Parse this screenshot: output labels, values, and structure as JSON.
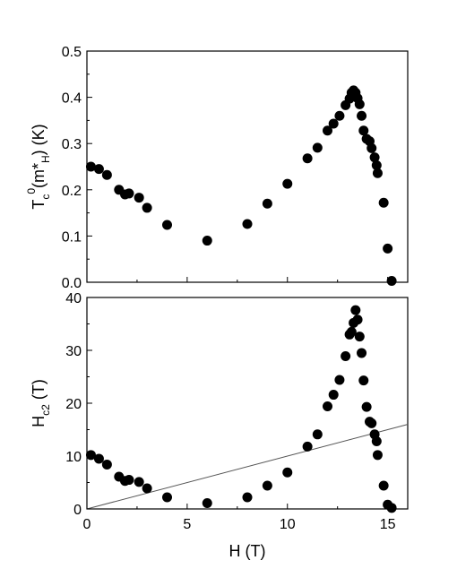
{
  "chart_data": [
    {
      "id": "top",
      "type": "scatter",
      "ylabel": {
        "main": "T",
        "sub": "c",
        "sup": "0",
        "rest": "(m*",
        "sub2": "H",
        "tail": ") (K)"
      },
      "xlim": [
        0,
        16
      ],
      "ylim": [
        0,
        0.5
      ],
      "xticks": [
        "0",
        "5",
        "10",
        "15"
      ],
      "yticks": [
        "0.0",
        "0.1",
        "0.2",
        "0.3",
        "0.4",
        "0.5"
      ],
      "series": [
        {
          "marker": "filled-circle",
          "color": "#000000",
          "x": [
            0.2,
            0.6,
            1.0,
            1.6,
            1.9,
            2.1,
            2.6,
            3.0,
            4.0,
            6.0,
            8.0,
            9.0,
            10.0,
            11.0,
            11.5,
            12.0,
            12.3,
            12.6,
            12.9,
            13.1,
            13.2,
            13.3,
            13.4,
            13.5,
            13.6,
            13.7,
            13.8,
            13.95,
            14.1,
            14.2,
            14.35,
            14.45,
            14.5,
            14.8,
            15.0,
            15.2
          ],
          "y": [
            0.25,
            0.245,
            0.232,
            0.2,
            0.19,
            0.192,
            0.183,
            0.161,
            0.124,
            0.09,
            0.126,
            0.17,
            0.213,
            0.268,
            0.291,
            0.328,
            0.343,
            0.36,
            0.383,
            0.397,
            0.41,
            0.415,
            0.41,
            0.398,
            0.385,
            0.36,
            0.328,
            0.31,
            0.305,
            0.29,
            0.27,
            0.253,
            0.236,
            0.172,
            0.073,
            0.003
          ]
        }
      ]
    },
    {
      "id": "bottom",
      "type": "scatter",
      "ylabel": {
        "main": "H",
        "sub": "c2",
        "tail": " (T)"
      },
      "xlabel": "H (T)",
      "xlim": [
        0,
        16
      ],
      "ylim": [
        0,
        40
      ],
      "xticks": [
        "0",
        "5",
        "10",
        "15"
      ],
      "yticks": [
        "0",
        "10",
        "20",
        "30",
        "40"
      ],
      "reference_line": {
        "x": [
          0,
          16
        ],
        "y": [
          0,
          16
        ],
        "color": "#555555"
      },
      "series": [
        {
          "marker": "filled-circle",
          "color": "#000000",
          "x": [
            0.2,
            0.6,
            1.0,
            1.6,
            1.9,
            2.1,
            2.6,
            3.0,
            4.0,
            6.0,
            8.0,
            9.0,
            10.0,
            11.0,
            11.5,
            12.0,
            12.3,
            12.6,
            12.9,
            13.1,
            13.2,
            13.3,
            13.4,
            13.5,
            13.6,
            13.7,
            13.8,
            13.95,
            14.1,
            14.2,
            14.35,
            14.45,
            14.5,
            14.8,
            15.0,
            15.2
          ],
          "y": [
            10.2,
            9.5,
            8.4,
            6.1,
            5.3,
            5.5,
            5.1,
            3.9,
            2.2,
            1.1,
            2.2,
            4.4,
            6.9,
            11.8,
            14.1,
            19.4,
            21.6,
            24.4,
            28.9,
            33.0,
            33.5,
            35.2,
            37.6,
            35.8,
            32.6,
            29.5,
            24.3,
            19.3,
            16.5,
            16.2,
            14.1,
            12.8,
            10.2,
            4.4,
            0.8,
            0.2
          ]
        }
      ]
    }
  ]
}
